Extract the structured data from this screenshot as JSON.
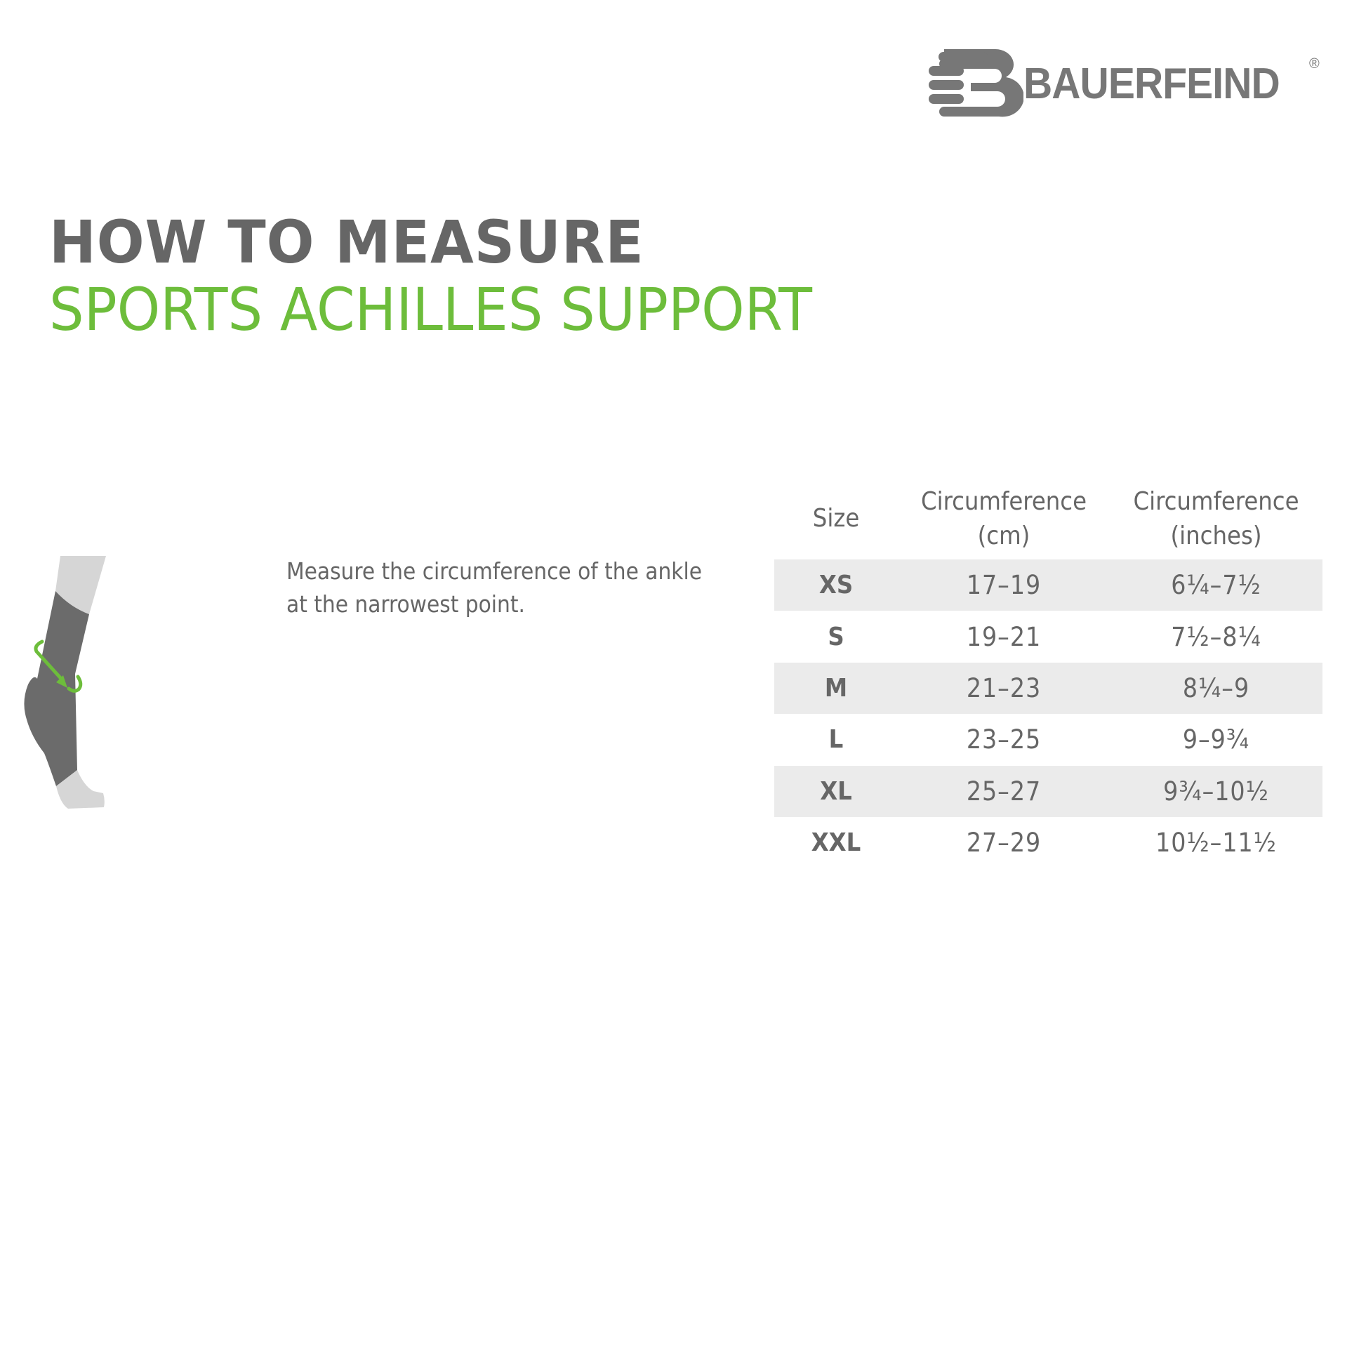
{
  "brand": {
    "logo_text": "BAUERFEIND",
    "registered_mark": "®"
  },
  "title": "HOW TO MEASURE",
  "subtitle": "SPORTS ACHILLES SUPPORT",
  "instruction": "Measure the circumference of the ankle at the narrowest point.",
  "colors": {
    "accent_green": "#6dbd3b",
    "text_gray": "#666666",
    "row_shade": "#ebebeb"
  },
  "illustration": {
    "icon": "ankle-sock-with-measuring-arrow-icon"
  },
  "size_table": {
    "headers": {
      "size": "Size",
      "cm_line1": "Circumference",
      "cm_line2": "(cm)",
      "in_line1": "Circumference",
      "in_line2": "(inches)"
    },
    "rows": [
      {
        "size": "XS",
        "cm": "17–19",
        "inches": "6¼–7½"
      },
      {
        "size": "S",
        "cm": "19–21",
        "inches": "7½–8¼"
      },
      {
        "size": "M",
        "cm": "21–23",
        "inches": "8¼–9"
      },
      {
        "size": "L",
        "cm": "23–25",
        "inches": "9–9¾"
      },
      {
        "size": "XL",
        "cm": "25–27",
        "inches": "9¾–10½"
      },
      {
        "size": "XXL",
        "cm": "27–29",
        "inches": "10½–11½"
      }
    ]
  }
}
